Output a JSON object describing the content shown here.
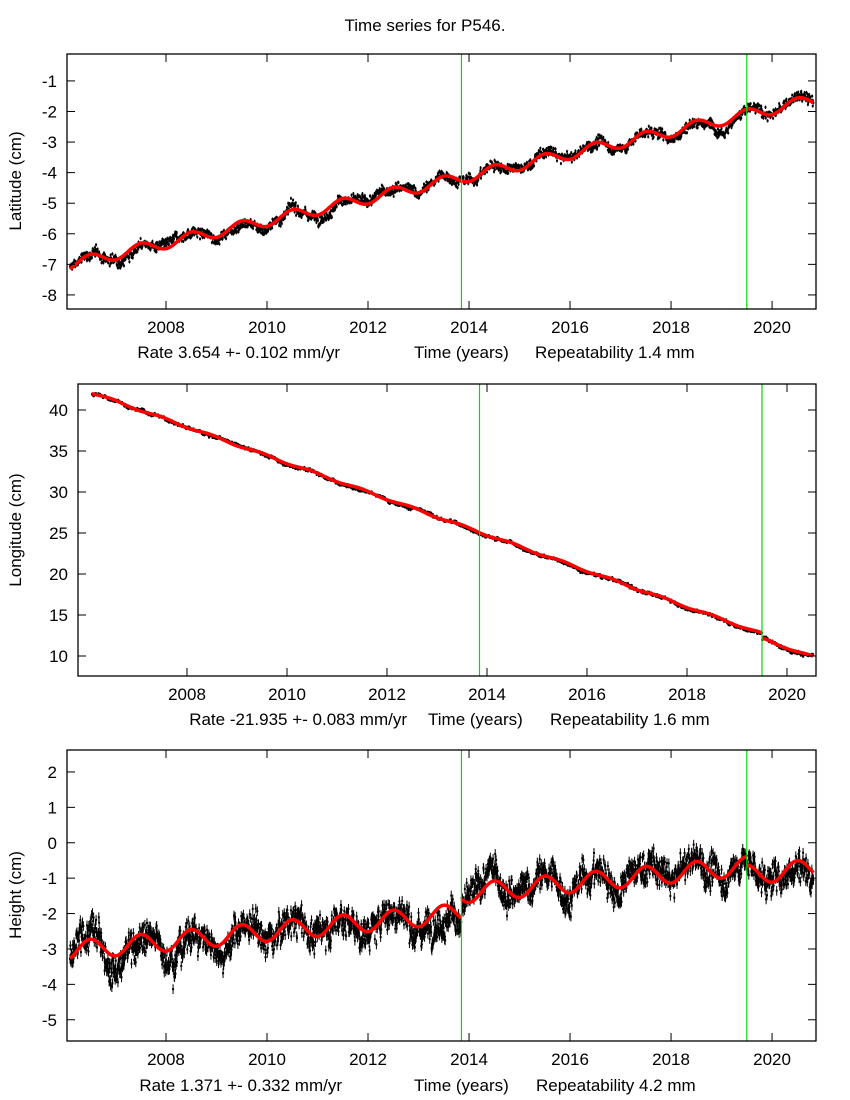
{
  "chart_data": {
    "title": "Time series for P546.",
    "type": "scatter",
    "colors": {
      "data": "#000000",
      "model": "#ff0000",
      "offset_marker": "#00dd00",
      "frame": "#000000"
    },
    "offset_markers_x": [
      2013.85,
      2019.5
    ],
    "panels": [
      {
        "id": "latitude",
        "ylabel": "Latitude (cm)",
        "xlabel_parts": [
          "Rate 3.654 +- 0.102 mm/yr",
          "Time (years)",
          "Repeatability 1.4 mm"
        ],
        "xlim": [
          2006.04,
          2020.87
        ],
        "ylim": [
          -8.46,
          -0.12
        ],
        "xticks": [
          2008,
          2010,
          2012,
          2014,
          2016,
          2018,
          2020
        ],
        "xtick_labels": [
          "2008",
          "2010",
          "2012",
          "2014",
          "2016",
          "2018",
          "2020"
        ],
        "yticks": [
          -1,
          -2,
          -3,
          -4,
          -5,
          -6,
          -7,
          -8
        ],
        "ytick_labels": [
          "-1",
          "-2",
          "-3",
          "-4",
          "-5",
          "-6",
          "-7",
          "-8"
        ],
        "rate_cm_per_yr": 0.3654,
        "model_start": -7.0,
        "seasonal_amp": 0.18,
        "noise": 0.22,
        "offsets": [
          0,
          0
        ]
      },
      {
        "id": "longitude",
        "ylabel": "Longitude (cm)",
        "xlabel_parts": [
          "Rate -21.935 +- 0.083 mm/yr",
          "Time (years)",
          "Repeatability 1.6 mm"
        ],
        "xlim": [
          2005.82,
          2020.58
        ],
        "ylim": [
          7.56,
          43.17
        ],
        "xticks": [
          2008,
          2010,
          2012,
          2014,
          2016,
          2018,
          2020
        ],
        "xtick_labels": [
          "2008",
          "2010",
          "2012",
          "2014",
          "2016",
          "2018",
          "2020"
        ],
        "yticks": [
          40,
          35,
          30,
          25,
          20,
          15,
          10
        ],
        "ytick_labels": [
          "40",
          "35",
          "30",
          "25",
          "20",
          "15",
          "10"
        ],
        "rate_cm_per_yr": -2.1935,
        "model_start": 42.1,
        "seasonal_amp": 0.12,
        "noise": 0.25,
        "offsets": [
          0,
          -0.6
        ]
      },
      {
        "id": "height",
        "ylabel": "Height (cm)",
        "xlabel_parts": [
          "Rate 1.371 +- 0.332 mm/yr",
          "Time (years)",
          "Repeatability 4.2 mm"
        ],
        "xlim": [
          2006.04,
          2020.87
        ],
        "ylim": [
          -5.6,
          2.62
        ],
        "xticks": [
          2008,
          2010,
          2012,
          2014,
          2016,
          2018,
          2020
        ],
        "xtick_labels": [
          "2008",
          "2010",
          "2012",
          "2014",
          "2016",
          "2018",
          "2020"
        ],
        "yticks": [
          2,
          1,
          0,
          -1,
          -2,
          -3,
          -4,
          -5
        ],
        "ytick_labels": [
          "2",
          "1",
          "0",
          "-1",
          "-2",
          "-3",
          "-4",
          "-5"
        ],
        "rate_cm_per_yr": 0.1371,
        "model_start": -3.05,
        "seasonal_amp": 0.27,
        "noise": 0.55,
        "offsets": [
          0.55,
          -0.25
        ]
      }
    ]
  }
}
